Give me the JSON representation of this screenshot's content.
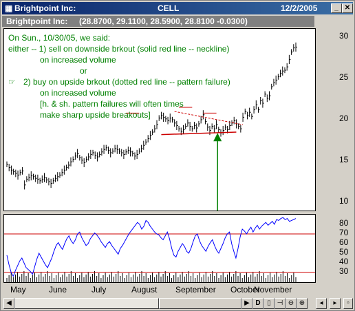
{
  "window": {
    "title": "Brightpoint Inc:",
    "symbol": "CELL",
    "date": "12/2/2005"
  },
  "subheader": {
    "name": "Brightpoint Inc:",
    "values": "(28.8700, 29.1100, 28.5900, 28.8100 -0.0300)"
  },
  "annotations": [
    "On Sun., 10/30/05, we said:",
    "either -- 1) sell on downside brkout (solid red line -- neckline)",
    "on increased volume",
    "or",
    "2) buy on upside brkout (dotted red line -- pattern failure)",
    "on increased volume",
    "[h. & sh. pattern failures will often times",
    "make sharp upside breakouts]"
  ],
  "chart_data": [
    {
      "type": "bar",
      "title": "",
      "xlabel": "",
      "ylabel": "",
      "x_ticks": [
        "May",
        "June",
        "July",
        "August",
        "September",
        "October",
        "November"
      ],
      "y_ticks": [
        "10",
        "15",
        "20",
        "25",
        "30"
      ],
      "ylim": [
        9,
        31
      ],
      "grid": false,
      "series": [
        {
          "values": [
            14.6,
            14.2,
            13.9,
            13.7,
            13.5,
            13.3,
            13.6,
            13.8,
            12.1,
            12.8,
            13.0,
            13.2,
            13.1,
            12.9,
            12.8,
            12.6,
            12.8,
            13.0,
            12.7,
            12.5,
            12.3,
            12.6,
            12.9,
            13.1,
            13.3,
            13.6,
            13.9,
            14.2,
            14.5,
            14.9,
            15.2,
            15.6,
            15.9,
            15.4,
            15.1,
            14.8,
            15.2,
            15.5,
            15.8,
            16.0,
            15.7,
            15.5,
            15.8,
            16.1,
            16.4,
            16.6,
            16.3,
            16.0,
            16.2,
            16.5,
            16.4,
            16.2,
            16.0,
            15.8,
            16.1,
            16.3,
            16.1,
            15.9,
            15.6,
            15.8,
            16.2,
            16.5,
            16.9,
            17.3,
            17.7,
            18.1,
            18.5,
            18.9,
            19.4,
            20.2,
            20.5,
            20.3,
            20.1,
            19.9,
            20.2,
            20.0,
            19.6,
            19.3,
            18.9,
            18.6,
            18.8,
            19.2,
            19.6,
            19.2,
            18.9,
            19.3,
            19.0,
            19.5,
            20.0,
            20.6,
            19.8,
            19.1,
            18.7,
            19.2,
            18.9,
            19.4,
            18.8,
            18.4,
            18.7,
            19.1,
            18.8,
            19.3,
            19.6,
            19.9,
            19.5,
            19.2,
            18.9,
            20.3,
            21.0,
            20.5,
            20.9,
            20.4,
            21.2,
            21.8,
            21.2,
            22.3,
            22.0,
            23.1,
            22.6,
            22.9,
            24.0,
            24.5,
            24.8,
            25.2,
            25.6,
            25.9,
            26.0,
            26.4,
            27.3,
            28.2,
            28.7,
            28.8
          ]
        }
      ],
      "markers": {
        "neckline": "solid red line",
        "pattern_failure": "dotted red line",
        "breakout_arrow_color": "#008000"
      }
    },
    {
      "type": "line",
      "title": "",
      "x_ticks": [
        "May",
        "June",
        "July",
        "August",
        "September",
        "October",
        "November"
      ],
      "y_ticks": [
        "30",
        "40",
        "50",
        "60",
        "70",
        "80"
      ],
      "ylim": [
        20,
        90
      ],
      "reference_lines": [
        30,
        70
      ],
      "series": [
        {
          "values": [
            48,
            38,
            30,
            26,
            32,
            37,
            42,
            45,
            40,
            35,
            33,
            31,
            28,
            36,
            44,
            50,
            46,
            42,
            38,
            35,
            40,
            45,
            52,
            58,
            61,
            57,
            54,
            60,
            65,
            68,
            63,
            60,
            64,
            70,
            72,
            66,
            62,
            58,
            60,
            65,
            68,
            71,
            69,
            66,
            62,
            59,
            56,
            60,
            62,
            58,
            55,
            52,
            49,
            55,
            58,
            62,
            66,
            70,
            73,
            76,
            79,
            82,
            80,
            75,
            78,
            84,
            82,
            78,
            75,
            72,
            70,
            69,
            66,
            64,
            68,
            72,
            65,
            55,
            48,
            46,
            52,
            56,
            60,
            57,
            52,
            50,
            55,
            62,
            68,
            70,
            63,
            58,
            55,
            52,
            57,
            61,
            64,
            58,
            53,
            50,
            55,
            60,
            66,
            70,
            72,
            60,
            52,
            45,
            55,
            67,
            75,
            73,
            70,
            74,
            77,
            72,
            76,
            79,
            75,
            78,
            80,
            82,
            79,
            81,
            83,
            80,
            85,
            84,
            86,
            87,
            85,
            86,
            83,
            84,
            85,
            86
          ]
        }
      ]
    }
  ],
  "colors": {
    "price_bars": "#000000",
    "indicator_line": "#0000ff",
    "reference_lines": "#cc0000",
    "annotation_text": "#008000",
    "title_bar": "#0a246a"
  },
  "bottom_bar": {
    "period_button": "D"
  }
}
